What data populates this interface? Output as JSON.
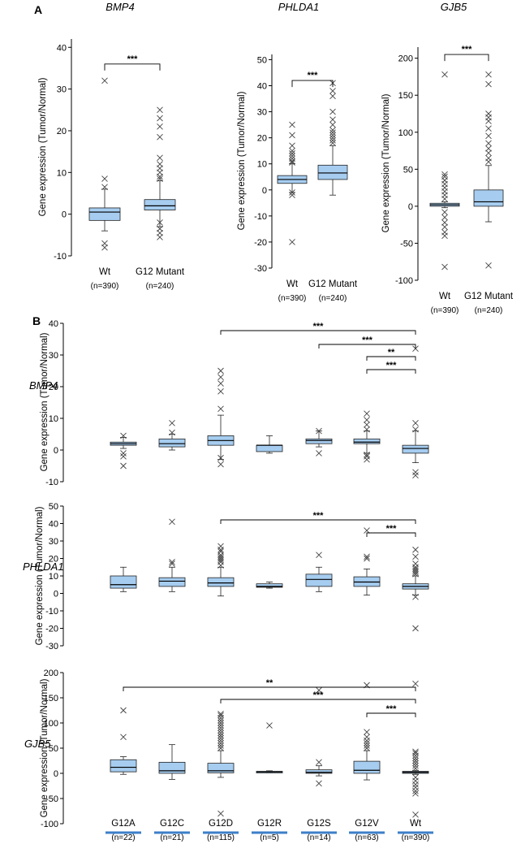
{
  "panels": {
    "a_label": "A",
    "b_label": "B"
  },
  "colors": {
    "box_fill": "#a6cdf0",
    "box_stroke": "#222222",
    "outlier": "#444444",
    "median": "#000000",
    "b_underline": "#3c7fc8"
  },
  "chart_data": [
    {
      "type": "box",
      "panel": "A",
      "title": "BMP4",
      "ylabel": "Gene expression (Tumor/Normal)",
      "ylim": [
        -10,
        42
      ],
      "yticks": [
        -10,
        0,
        10,
        20,
        30,
        40
      ],
      "categories": [
        {
          "label": "Wt",
          "n": "(n=390)"
        },
        {
          "label": "G12 Mutant",
          "n": "(n=240)"
        }
      ],
      "boxes": [
        {
          "whisker_low": -4,
          "q1": -1.5,
          "median": 0.5,
          "q3": 1.5,
          "whisker_high": 6,
          "outliers": [
            -8,
            -7,
            6.5,
            8.5,
            32
          ]
        },
        {
          "whisker_low": -3,
          "q1": 1,
          "median": 2,
          "q3": 3.5,
          "whisker_high": 8,
          "outliers": [
            -5.5,
            -4.5,
            -3.5,
            -2,
            8.5,
            9,
            10,
            11,
            12,
            13.5,
            18.5,
            21,
            23,
            25
          ]
        }
      ],
      "significance": [
        {
          "from": 0,
          "to": 1,
          "label": "***",
          "y": 36
        }
      ]
    },
    {
      "type": "box",
      "panel": "A",
      "title": "PHLDA1",
      "ylabel": "Gene expression (Tumor/Normal)",
      "ylim": [
        -30,
        52
      ],
      "yticks": [
        -30,
        -20,
        -10,
        0,
        10,
        20,
        30,
        40,
        50
      ],
      "categories": [
        {
          "label": "Wt",
          "n": "(n=390)"
        },
        {
          "label": "G12 Mutant",
          "n": "(n=240)"
        }
      ],
      "boxes": [
        {
          "whisker_low": -1,
          "q1": 2.5,
          "median": 4,
          "q3": 5.5,
          "whisker_high": 10,
          "outliers": [
            -20,
            -2,
            -1,
            10.5,
            11,
            12,
            13,
            14,
            15,
            17,
            21,
            25
          ]
        },
        {
          "whisker_low": -2,
          "q1": 4,
          "median": 6.5,
          "q3": 9.5,
          "whisker_high": 17,
          "outliers": [
            18,
            19,
            20,
            21,
            22,
            23,
            25,
            27,
            30,
            36,
            38,
            41
          ]
        }
      ],
      "significance": [
        {
          "from": 0,
          "to": 1,
          "label": "***",
          "y": 42
        }
      ]
    },
    {
      "type": "box",
      "panel": "A",
      "title": "GJB5",
      "ylabel": "Gene expression (Tumor/Normal)",
      "ylim": [
        -100,
        215
      ],
      "yticks": [
        -100,
        -50,
        0,
        50,
        100,
        150,
        200
      ],
      "categories": [
        {
          "label": "Wt",
          "n": "(n=390)"
        },
        {
          "label": "G12 Mutant",
          "n": "(n=240)"
        }
      ],
      "boxes": [
        {
          "whisker_low": -2,
          "q1": 0,
          "median": 2,
          "q3": 4,
          "whisker_high": 6,
          "outliers": [
            -82,
            -40,
            -35,
            -28,
            -22,
            -15,
            -8,
            10,
            15,
            20,
            25,
            30,
            35,
            40,
            43,
            178
          ]
        },
        {
          "whisker_low": -21,
          "q1": 0,
          "median": 6,
          "q3": 22,
          "whisker_high": 55,
          "outliers": [
            -80,
            60,
            65,
            72,
            78,
            85,
            95,
            105,
            115,
            120,
            125,
            165,
            178
          ]
        }
      ],
      "significance": [
        {
          "from": 0,
          "to": 1,
          "label": "***",
          "y": 205
        }
      ]
    },
    {
      "type": "box",
      "panel": "B",
      "gene": "BMP4",
      "ylabel": "Gene expression (Tumor/Normal)",
      "ylim": [
        -10,
        40
      ],
      "yticks": [
        -10,
        0,
        10,
        20,
        30,
        40
      ],
      "boxes": [
        {
          "whisker_low": 0.5,
          "q1": 1.5,
          "median": 2,
          "q3": 2.5,
          "whisker_high": 4,
          "outliers": [
            -5,
            -2,
            -1,
            4.5
          ]
        },
        {
          "whisker_low": 0,
          "q1": 1,
          "median": 2,
          "q3": 3.5,
          "whisker_high": 5,
          "outliers": [
            5.5,
            8.5
          ]
        },
        {
          "whisker_low": -3,
          "q1": 1.5,
          "median": 3,
          "q3": 4.5,
          "whisker_high": 11,
          "outliers": [
            -4.5,
            -2.5,
            13,
            18.5,
            21,
            23,
            25
          ]
        },
        {
          "whisker_low": -1,
          "q1": -0.5,
          "median": 1.5,
          "q3": 1.5,
          "whisker_high": 4.5,
          "outliers": []
        },
        {
          "whisker_low": 1,
          "q1": 2,
          "median": 3,
          "q3": 3.5,
          "whisker_high": 6,
          "outliers": [
            -1,
            6
          ]
        },
        {
          "whisker_low": -1,
          "q1": 2,
          "median": 2.5,
          "q3": 3.5,
          "whisker_high": 6,
          "outliers": [
            -3,
            -2,
            -1.5,
            6.5,
            8,
            9.5,
            11.5
          ]
        },
        {
          "whisker_low": -4,
          "q1": -1,
          "median": 0.5,
          "q3": 1.5,
          "whisker_high": 6,
          "outliers": [
            -8,
            -7,
            6.5,
            8.5,
            32
          ]
        }
      ],
      "significance": [
        {
          "from": 2,
          "to": 6,
          "label": "***"
        },
        {
          "from": 4,
          "to": 6,
          "label": "***"
        },
        {
          "from": 5,
          "to": 6,
          "label": "**"
        },
        {
          "from": 5,
          "to": 6,
          "label": "***"
        }
      ]
    },
    {
      "type": "box",
      "panel": "B",
      "gene": "PHLDA1",
      "ylabel": "Gene expression (Tumor/Normal)",
      "ylim": [
        -30,
        50
      ],
      "yticks": [
        -30,
        -20,
        -10,
        0,
        10,
        20,
        30,
        40,
        50
      ],
      "boxes": [
        {
          "whisker_low": 1,
          "q1": 3,
          "median": 5,
          "q3": 10,
          "whisker_high": 15,
          "outliers": []
        },
        {
          "whisker_low": 1,
          "q1": 4,
          "median": 7,
          "q3": 9,
          "whisker_high": 15,
          "outliers": [
            17,
            18,
            41
          ]
        },
        {
          "whisker_low": -1.5,
          "q1": 4,
          "median": 6,
          "q3": 9,
          "whisker_high": 15,
          "outliers": [
            16,
            18,
            19,
            20,
            21,
            22,
            24,
            25,
            27
          ]
        },
        {
          "whisker_low": 3,
          "q1": 3.5,
          "median": 4,
          "q3": 5.5,
          "whisker_high": 6.5,
          "outliers": []
        },
        {
          "whisker_low": 1,
          "q1": 4,
          "median": 8,
          "q3": 11,
          "whisker_high": 15,
          "outliers": [
            22
          ]
        },
        {
          "whisker_low": -1,
          "q1": 4,
          "median": 6.5,
          "q3": 9.5,
          "whisker_high": 14,
          "outliers": [
            20,
            21,
            36
          ]
        },
        {
          "whisker_low": -1,
          "q1": 2.5,
          "median": 4,
          "q3": 5.5,
          "whisker_high": 10,
          "outliers": [
            -20,
            -2,
            11,
            12,
            13,
            14,
            15,
            17,
            21,
            25
          ]
        }
      ],
      "significance": [
        {
          "from": 2,
          "to": 6,
          "label": "***"
        },
        {
          "from": 5,
          "to": 6,
          "label": "***"
        }
      ]
    },
    {
      "type": "box",
      "panel": "B",
      "gene": "GJB5",
      "ylabel": "Gene expression (Tumor/Normal)",
      "ylim": [
        -100,
        200
      ],
      "yticks": [
        -100,
        -50,
        0,
        50,
        100,
        150,
        200
      ],
      "categories": [
        {
          "label": "G12A",
          "n": "(n=22)"
        },
        {
          "label": "G12C",
          "n": "(n=21)"
        },
        {
          "label": "G12D",
          "n": "(n=115)"
        },
        {
          "label": "G12R",
          "n": "(n=5)"
        },
        {
          "label": "G12S",
          "n": "(n=14)"
        },
        {
          "label": "G12V",
          "n": "(n=63)"
        },
        {
          "label": "Wt",
          "n": "(n=390)"
        }
      ],
      "boxes": [
        {
          "whisker_low": -2,
          "q1": 3,
          "median": 12,
          "q3": 27,
          "whisker_high": 33,
          "outliers": [
            72,
            125
          ]
        },
        {
          "whisker_low": -12,
          "q1": 0,
          "median": 5,
          "q3": 22,
          "whisker_high": 57,
          "outliers": []
        },
        {
          "whisker_low": -8,
          "q1": 1,
          "median": 5,
          "q3": 20,
          "whisker_high": 45,
          "outliers": [
            -80,
            50,
            55,
            60,
            65,
            70,
            75,
            80,
            85,
            90,
            95,
            100,
            105,
            110,
            115,
            118
          ]
        },
        {
          "whisker_low": 1,
          "q1": 2,
          "median": 3,
          "q3": 4,
          "whisker_high": 5,
          "outliers": [
            95
          ]
        },
        {
          "whisker_low": -5,
          "q1": 0,
          "median": 2,
          "q3": 7,
          "whisker_high": 15,
          "outliers": [
            -20,
            22,
            165
          ]
        },
        {
          "whisker_low": -13,
          "q1": 0,
          "median": 6,
          "q3": 24,
          "whisker_high": 45,
          "outliers": [
            50,
            55,
            60,
            65,
            72,
            82,
            175
          ]
        },
        {
          "whisker_low": -2,
          "q1": 0,
          "median": 2,
          "q3": 4,
          "whisker_high": 6,
          "outliers": [
            -82,
            -40,
            -35,
            -28,
            -22,
            -15,
            -8,
            10,
            15,
            20,
            25,
            30,
            35,
            40,
            43,
            178
          ]
        }
      ],
      "significance": [
        {
          "from": 0,
          "to": 6,
          "label": "**"
        },
        {
          "from": 2,
          "to": 6,
          "label": "***"
        },
        {
          "from": 5,
          "to": 6,
          "label": "***"
        }
      ]
    }
  ]
}
